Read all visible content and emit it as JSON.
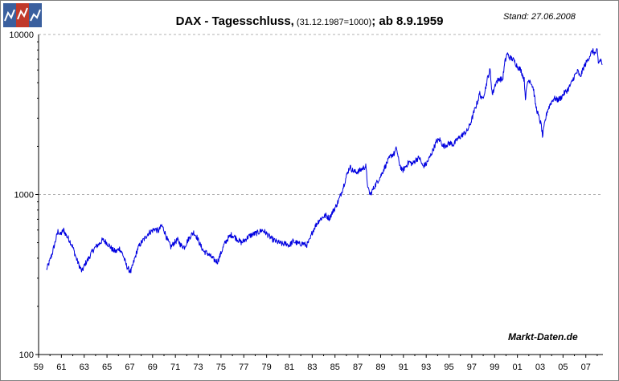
{
  "header": {
    "title_main": "DAX - Tagesschluss,",
    "title_sub": " (31.12.1987=1000)",
    "title_end": "; ab 8.9.1959",
    "stand": "Stand: 27.06.2008"
  },
  "footer": {
    "credit": "Markt-Daten.de"
  },
  "logo": {
    "icon": "market-data-logo-icon",
    "colors": [
      "#3a5f9e",
      "#c0392b",
      "#3a5f9e"
    ]
  },
  "chart_data": {
    "type": "line",
    "title": "DAX - Tagesschluss, (31.12.1987=1000); ab 8.9.1959",
    "xlabel": "",
    "ylabel": "",
    "y_scale": "log",
    "ylim": [
      100,
      10000
    ],
    "xlim": [
      1959,
      2008.5
    ],
    "grid": "horizontal dashed",
    "y_ticks": [
      {
        "value": 100,
        "label": "100"
      },
      {
        "value": 1000,
        "label": "1000"
      },
      {
        "value": 10000,
        "label": "10000"
      }
    ],
    "x_ticks": [
      {
        "value": 1959,
        "label": "59"
      },
      {
        "value": 1961,
        "label": "61"
      },
      {
        "value": 1963,
        "label": "63"
      },
      {
        "value": 1965,
        "label": "65"
      },
      {
        "value": 1967,
        "label": "67"
      },
      {
        "value": 1969,
        "label": "69"
      },
      {
        "value": 1971,
        "label": "71"
      },
      {
        "value": 1973,
        "label": "73"
      },
      {
        "value": 1975,
        "label": "75"
      },
      {
        "value": 1977,
        "label": "77"
      },
      {
        "value": 1979,
        "label": "79"
      },
      {
        "value": 1981,
        "label": "81"
      },
      {
        "value": 1983,
        "label": "83"
      },
      {
        "value": 1985,
        "label": "85"
      },
      {
        "value": 1987,
        "label": "87"
      },
      {
        "value": 1989,
        "label": "89"
      },
      {
        "value": 1991,
        "label": "91"
      },
      {
        "value": 1993,
        "label": "93"
      },
      {
        "value": 1995,
        "label": "95"
      },
      {
        "value": 1997,
        "label": "97"
      },
      {
        "value": 1999,
        "label": "99"
      },
      {
        "value": 2001,
        "label": "01"
      },
      {
        "value": 2003,
        "label": "03"
      },
      {
        "value": 2005,
        "label": "05"
      },
      {
        "value": 2007,
        "label": "07"
      }
    ],
    "series": [
      {
        "color": "#0000e0",
        "points": [
          [
            1959.7,
            340
          ],
          [
            1959.9,
            370
          ],
          [
            1960.2,
            430
          ],
          [
            1960.5,
            520
          ],
          [
            1960.7,
            590
          ],
          [
            1960.9,
            560
          ],
          [
            1961.2,
            600
          ],
          [
            1961.4,
            560
          ],
          [
            1961.7,
            520
          ],
          [
            1962.0,
            470
          ],
          [
            1962.3,
            400
          ],
          [
            1962.6,
            355
          ],
          [
            1962.8,
            330
          ],
          [
            1963.1,
            370
          ],
          [
            1963.4,
            400
          ],
          [
            1963.7,
            440
          ],
          [
            1964.0,
            470
          ],
          [
            1964.3,
            490
          ],
          [
            1964.6,
            520
          ],
          [
            1964.9,
            505
          ],
          [
            1965.2,
            480
          ],
          [
            1965.5,
            450
          ],
          [
            1965.8,
            440
          ],
          [
            1966.1,
            460
          ],
          [
            1966.4,
            420
          ],
          [
            1966.7,
            360
          ],
          [
            1966.9,
            340
          ],
          [
            1967.1,
            330
          ],
          [
            1967.4,
            390
          ],
          [
            1967.7,
            460
          ],
          [
            1968.0,
            500
          ],
          [
            1968.3,
            530
          ],
          [
            1968.6,
            570
          ],
          [
            1968.9,
            590
          ],
          [
            1969.2,
            610
          ],
          [
            1969.5,
            590
          ],
          [
            1969.8,
            640
          ],
          [
            1970.0,
            600
          ],
          [
            1970.3,
            520
          ],
          [
            1970.6,
            470
          ],
          [
            1970.9,
            500
          ],
          [
            1971.2,
            520
          ],
          [
            1971.5,
            480
          ],
          [
            1971.8,
            470
          ],
          [
            1972.1,
            520
          ],
          [
            1972.4,
            560
          ],
          [
            1972.6,
            580
          ],
          [
            1972.9,
            540
          ],
          [
            1973.2,
            480
          ],
          [
            1973.5,
            440
          ],
          [
            1973.8,
            430
          ],
          [
            1974.1,
            410
          ],
          [
            1974.4,
            390
          ],
          [
            1974.7,
            380
          ],
          [
            1975.0,
            430
          ],
          [
            1975.3,
            490
          ],
          [
            1975.6,
            530
          ],
          [
            1975.9,
            560
          ],
          [
            1976.2,
            545
          ],
          [
            1976.5,
            520
          ],
          [
            1976.8,
            500
          ],
          [
            1977.1,
            520
          ],
          [
            1977.4,
            545
          ],
          [
            1977.7,
            560
          ],
          [
            1978.0,
            570
          ],
          [
            1978.3,
            580
          ],
          [
            1978.6,
            600
          ],
          [
            1978.9,
            580
          ],
          [
            1979.2,
            550
          ],
          [
            1979.5,
            525
          ],
          [
            1979.8,
            510
          ],
          [
            1980.1,
            500
          ],
          [
            1980.4,
            490
          ],
          [
            1980.7,
            495
          ],
          [
            1981.0,
            480
          ],
          [
            1981.3,
            510
          ],
          [
            1981.6,
            500
          ],
          [
            1981.9,
            490
          ],
          [
            1982.2,
            495
          ],
          [
            1982.5,
            480
          ],
          [
            1982.8,
            520
          ],
          [
            1983.0,
            580
          ],
          [
            1983.3,
            640
          ],
          [
            1983.6,
            690
          ],
          [
            1983.9,
            720
          ],
          [
            1984.2,
            740
          ],
          [
            1984.5,
            710
          ],
          [
            1984.8,
            780
          ],
          [
            1985.1,
            850
          ],
          [
            1985.4,
            950
          ],
          [
            1985.7,
            1100
          ],
          [
            1986.0,
            1300
          ],
          [
            1986.3,
            1500
          ],
          [
            1986.5,
            1420
          ],
          [
            1986.8,
            1380
          ],
          [
            1987.1,
            1400
          ],
          [
            1987.4,
            1450
          ],
          [
            1987.7,
            1500
          ],
          [
            1987.9,
            1080
          ],
          [
            1988.1,
            1000
          ],
          [
            1988.4,
            1100
          ],
          [
            1988.7,
            1200
          ],
          [
            1989.0,
            1300
          ],
          [
            1989.3,
            1450
          ],
          [
            1989.6,
            1600
          ],
          [
            1989.9,
            1750
          ],
          [
            1990.2,
            1800
          ],
          [
            1990.4,
            1950
          ],
          [
            1990.6,
            1600
          ],
          [
            1990.9,
            1400
          ],
          [
            1991.2,
            1500
          ],
          [
            1991.5,
            1600
          ],
          [
            1991.8,
            1550
          ],
          [
            1992.1,
            1650
          ],
          [
            1992.4,
            1700
          ],
          [
            1992.7,
            1500
          ],
          [
            1993.0,
            1550
          ],
          [
            1993.3,
            1700
          ],
          [
            1993.6,
            1900
          ],
          [
            1993.9,
            2150
          ],
          [
            1994.2,
            2200
          ],
          [
            1994.5,
            2000
          ],
          [
            1994.8,
            2050
          ],
          [
            1995.1,
            2100
          ],
          [
            1995.4,
            2050
          ],
          [
            1995.7,
            2200
          ],
          [
            1996.0,
            2300
          ],
          [
            1996.3,
            2400
          ],
          [
            1996.6,
            2500
          ],
          [
            1996.9,
            2800
          ],
          [
            1997.2,
            3300
          ],
          [
            1997.5,
            3800
          ],
          [
            1997.7,
            4300
          ],
          [
            1997.9,
            3900
          ],
          [
            1998.2,
            4600
          ],
          [
            1998.4,
            5400
          ],
          [
            1998.6,
            6000
          ],
          [
            1998.8,
            4200
          ],
          [
            1999.1,
            5000
          ],
          [
            1999.4,
            5300
          ],
          [
            1999.7,
            5200
          ],
          [
            1999.9,
            6700
          ],
          [
            2000.1,
            7600
          ],
          [
            2000.3,
            7200
          ],
          [
            2000.6,
            7000
          ],
          [
            2000.8,
            6700
          ],
          [
            2001.0,
            6300
          ],
          [
            2001.3,
            6000
          ],
          [
            2001.6,
            5200
          ],
          [
            2001.7,
            4000
          ],
          [
            2001.9,
            5100
          ],
          [
            2002.1,
            5200
          ],
          [
            2002.4,
            4600
          ],
          [
            2002.6,
            3600
          ],
          [
            2002.9,
            3000
          ],
          [
            2003.1,
            2700
          ],
          [
            2003.2,
            2300
          ],
          [
            2003.4,
            2800
          ],
          [
            2003.6,
            3300
          ],
          [
            2003.9,
            3700
          ],
          [
            2004.2,
            4000
          ],
          [
            2004.5,
            3900
          ],
          [
            2004.8,
            4000
          ],
          [
            2005.1,
            4300
          ],
          [
            2005.4,
            4500
          ],
          [
            2005.7,
            4900
          ],
          [
            2006.0,
            5500
          ],
          [
            2006.3,
            5900
          ],
          [
            2006.5,
            5400
          ],
          [
            2006.8,
            6200
          ],
          [
            2007.1,
            6800
          ],
          [
            2007.4,
            7500
          ],
          [
            2007.6,
            7900
          ],
          [
            2007.8,
            7600
          ],
          [
            2008.0,
            7900
          ],
          [
            2008.1,
            6600
          ],
          [
            2008.3,
            7000
          ],
          [
            2008.45,
            6500
          ]
        ]
      }
    ]
  }
}
